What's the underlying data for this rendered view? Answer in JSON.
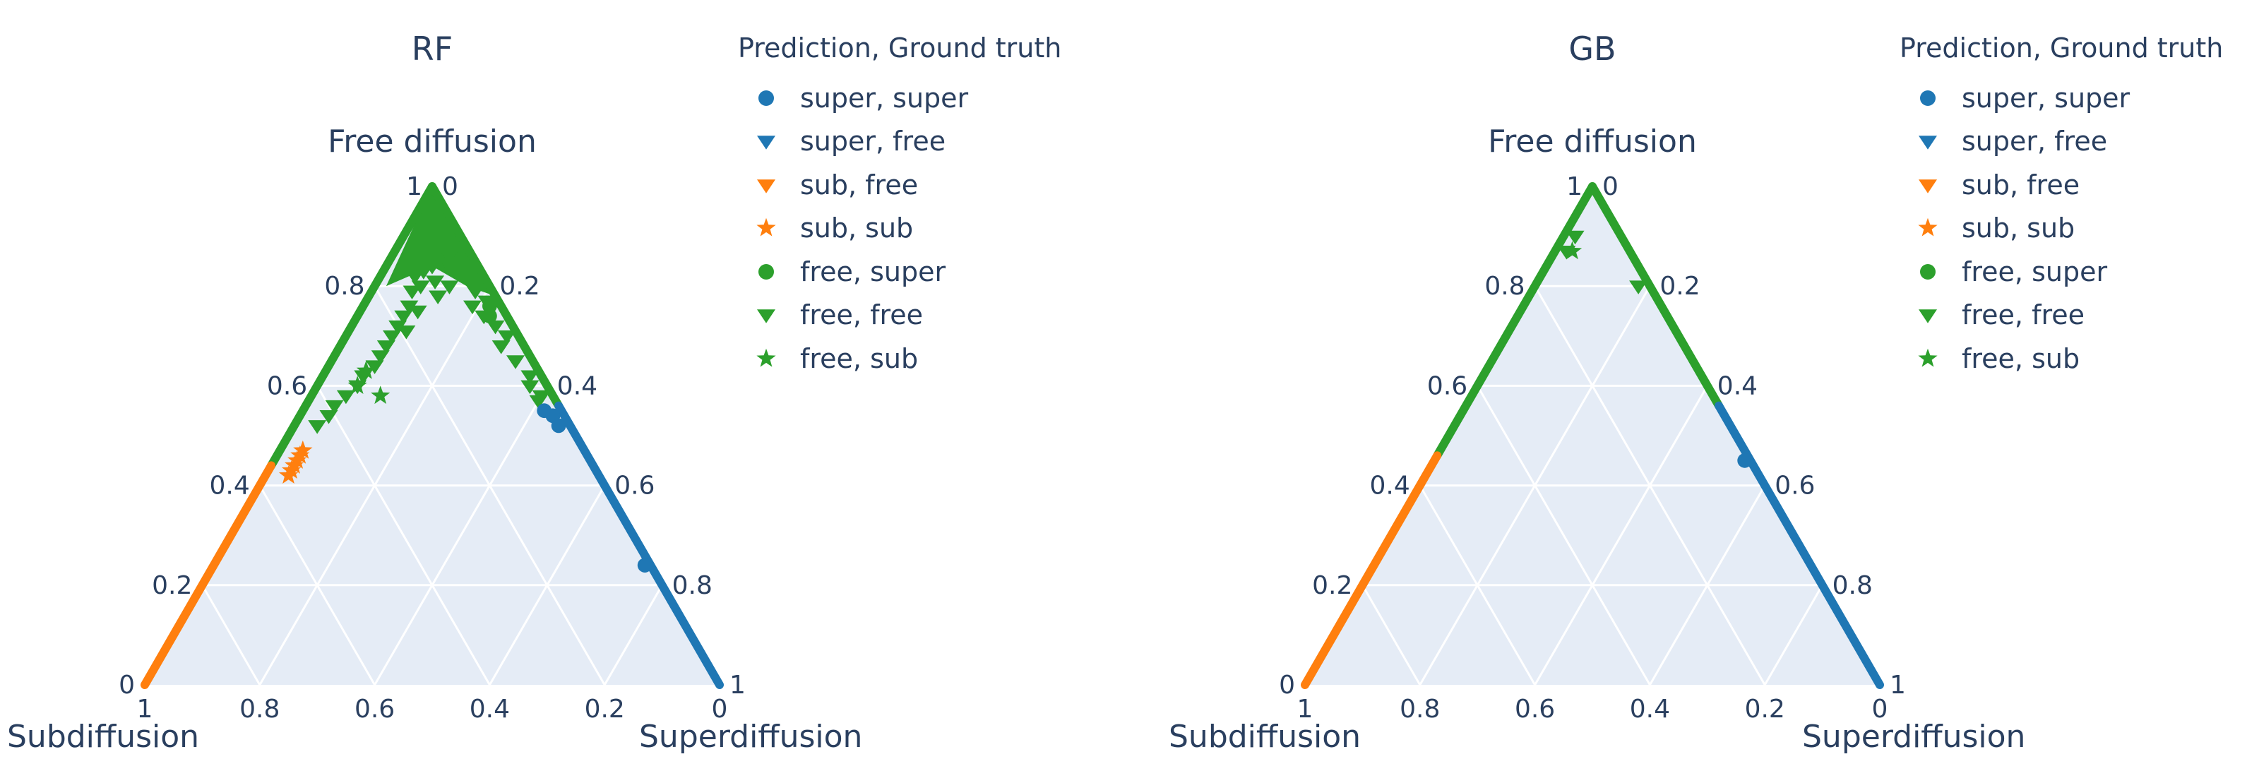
{
  "colors": {
    "super": "#1f77b4",
    "sub": "#ff7f0e",
    "free": "#2ca02c",
    "plot_bg": "#e5ecf6",
    "grid": "#ffffff",
    "text": "#2a3f5f"
  },
  "legend": {
    "title": "Prediction, Ground truth",
    "items": [
      {
        "label": "super, super",
        "color": "super",
        "symbol": "circle"
      },
      {
        "label": "super, free",
        "color": "super",
        "symbol": "triangle-down"
      },
      {
        "label": "sub, free",
        "color": "sub",
        "symbol": "triangle-down"
      },
      {
        "label": "sub, sub",
        "color": "sub",
        "symbol": "star"
      },
      {
        "label": "free, super",
        "color": "free",
        "symbol": "circle"
      },
      {
        "label": "free, free",
        "color": "free",
        "symbol": "triangle-down"
      },
      {
        "label": "free, sub",
        "color": "free",
        "symbol": "star"
      }
    ]
  },
  "chart_data": [
    {
      "type": "scatter",
      "subtype": "ternary",
      "title": "RF",
      "axes": {
        "a": "Free diffusion",
        "b": "Subdiffusion",
        "c": "Superdiffusion"
      },
      "ticks": {
        "a": [
          "0",
          "0.2",
          "0.4",
          "0.6",
          "0.8",
          "1"
        ],
        "b": [
          "0",
          "0.2",
          "0.4",
          "0.6",
          "0.8",
          "1"
        ],
        "c": [
          "0",
          "0.2",
          "0.4",
          "0.6",
          "0.8",
          "1"
        ]
      },
      "grid": true,
      "legend_position": "right-top",
      "edge_bands": [
        {
          "group": "free, free",
          "edge": "b-c-zero-left",
          "a_range": [
            0.44,
            1.0
          ]
        },
        {
          "group": "free, free",
          "edge": "right",
          "a_range": [
            0.56,
            1.0
          ]
        },
        {
          "group": "sub, sub",
          "edge": "left",
          "a_range": [
            0.0,
            0.44
          ]
        },
        {
          "group": "super, super",
          "edge": "right",
          "a_range": [
            0.0,
            0.56
          ]
        }
      ],
      "points": [
        {
          "group": "free, free",
          "abc": [
            [
              0.93,
              0.04,
              0.03
            ],
            [
              0.91,
              0.06,
              0.03
            ],
            [
              0.9,
              0.04,
              0.06
            ],
            [
              0.89,
              0.07,
              0.04
            ],
            [
              0.88,
              0.05,
              0.07
            ],
            [
              0.87,
              0.08,
              0.05
            ],
            [
              0.86,
              0.06,
              0.08
            ],
            [
              0.85,
              0.09,
              0.06
            ],
            [
              0.84,
              0.08,
              0.08
            ],
            [
              0.86,
              0.04,
              0.1
            ],
            [
              0.84,
              0.05,
              0.11
            ],
            [
              0.83,
              0.1,
              0.07
            ],
            [
              0.82,
              0.12,
              0.06
            ],
            [
              0.81,
              0.09,
              0.1
            ],
            [
              0.8,
              0.12,
              0.08
            ],
            [
              0.79,
              0.14,
              0.07
            ],
            [
              0.8,
              0.07,
              0.13
            ],
            [
              0.78,
              0.1,
              0.12
            ],
            [
              0.76,
              0.16,
              0.08
            ],
            [
              0.75,
              0.15,
              0.1
            ],
            [
              0.74,
              0.18,
              0.08
            ],
            [
              0.72,
              0.2,
              0.08
            ],
            [
              0.71,
              0.19,
              0.1
            ],
            [
              0.7,
              0.22,
              0.08
            ],
            [
              0.68,
              0.24,
              0.08
            ],
            [
              0.66,
              0.26,
              0.08
            ],
            [
              0.64,
              0.28,
              0.08
            ],
            [
              0.62,
              0.31,
              0.07
            ],
            [
              0.6,
              0.33,
              0.07
            ],
            [
              0.58,
              0.36,
              0.06
            ],
            [
              0.56,
              0.39,
              0.05
            ],
            [
              0.54,
              0.41,
              0.05
            ],
            [
              0.52,
              0.44,
              0.04
            ],
            [
              0.81,
              0.02,
              0.17
            ],
            [
              0.79,
              0.03,
              0.18
            ],
            [
              0.77,
              0.02,
              0.21
            ],
            [
              0.76,
              0.05,
              0.19
            ],
            [
              0.74,
              0.04,
              0.22
            ],
            [
              0.72,
              0.03,
              0.25
            ],
            [
              0.7,
              0.02,
              0.28
            ],
            [
              0.68,
              0.04,
              0.28
            ],
            [
              0.65,
              0.03,
              0.32
            ],
            [
              0.62,
              0.02,
              0.36
            ],
            [
              0.6,
              0.03,
              0.37
            ],
            [
              0.58,
              0.02,
              0.4
            ],
            [
              0.57,
              0.03,
              0.4
            ]
          ]
        },
        {
          "group": "free, super",
          "abc": [
            [
              0.76,
              0.02,
              0.22
            ],
            [
              0.74,
              0.03,
              0.23
            ]
          ]
        },
        {
          "group": "free, sub",
          "abc": [
            [
              0.63,
              0.3,
              0.07
            ],
            [
              0.6,
              0.33,
              0.07
            ],
            [
              0.58,
              0.3,
              0.12
            ]
          ]
        },
        {
          "group": "sub, sub",
          "abc": [
            [
              0.47,
              0.49,
              0.04
            ],
            [
              0.46,
              0.5,
              0.04
            ],
            [
              0.45,
              0.51,
              0.04
            ],
            [
              0.44,
              0.52,
              0.04
            ],
            [
              0.43,
              0.53,
              0.04
            ],
            [
              0.42,
              0.54,
              0.04
            ]
          ]
        },
        {
          "group": "super, super",
          "abc": [
            [
              0.55,
              0.03,
              0.42
            ],
            [
              0.54,
              0.02,
              0.44
            ],
            [
              0.52,
              0.02,
              0.46
            ],
            [
              0.24,
              0.01,
              0.75
            ]
          ]
        }
      ]
    },
    {
      "type": "scatter",
      "subtype": "ternary",
      "title": "GB",
      "axes": {
        "a": "Free diffusion",
        "b": "Subdiffusion",
        "c": "Superdiffusion"
      },
      "ticks": {
        "a": [
          "0",
          "0.2",
          "0.4",
          "0.6",
          "0.8",
          "1"
        ],
        "b": [
          "0",
          "0.2",
          "0.4",
          "0.6",
          "0.8",
          "1"
        ],
        "c": [
          "0",
          "0.2",
          "0.4",
          "0.6",
          "0.8",
          "1"
        ]
      },
      "grid": true,
      "legend_position": "right-top",
      "edge_bands": [
        {
          "group": "free, free",
          "edge": "left",
          "a_range": [
            0.46,
            1.0
          ]
        },
        {
          "group": "free, free",
          "edge": "right",
          "a_range": [
            0.56,
            1.0
          ]
        },
        {
          "group": "sub, sub",
          "edge": "left",
          "a_range": [
            0.0,
            0.46
          ]
        },
        {
          "group": "super, super",
          "edge": "right",
          "a_range": [
            0.0,
            0.56
          ]
        }
      ],
      "points": [
        {
          "group": "free, free",
          "abc": [
            [
              0.8,
              0.02,
              0.18
            ],
            [
              0.9,
              0.08,
              0.02
            ],
            [
              0.87,
              0.11,
              0.02
            ]
          ]
        },
        {
          "group": "free, sub",
          "abc": [
            [
              0.87,
              0.1,
              0.03
            ]
          ]
        },
        {
          "group": "super, super",
          "abc": [
            [
              0.45,
              0.01,
              0.54
            ]
          ]
        }
      ]
    }
  ]
}
